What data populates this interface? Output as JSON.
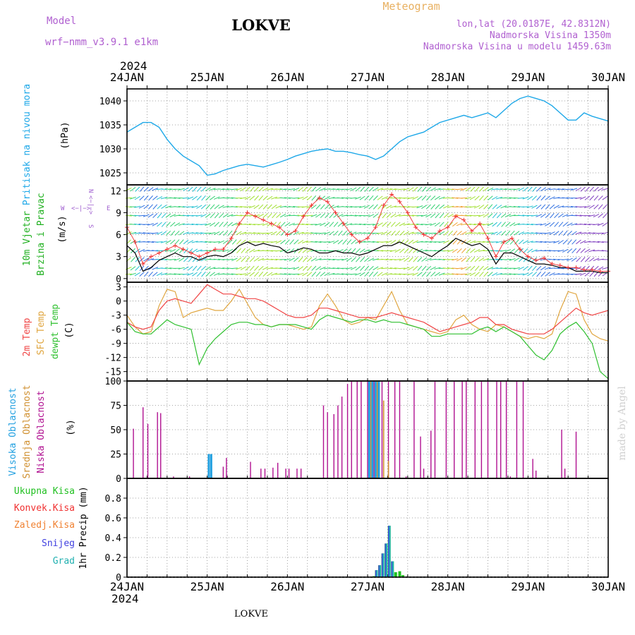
{
  "header": {
    "model_label": "Model",
    "model_name": "wrf−nmm_v3.9.1  e1km",
    "station_title": "LOKVE",
    "product_title": "Meteogram",
    "coords": "lon,lat (20.0187E, 42.8312N)",
    "elevation": "Nadmorska Visina 1350m",
    "model_elevation": "Nadmorska Visina u modelu 1459.63m",
    "footer_station": "LOKVE",
    "watermark": "made by Angel"
  },
  "time_axis": {
    "year_top": "2024",
    "year_bottom": "2024",
    "labels": [
      "24JAN",
      "25JAN",
      "26JAN",
      "27JAN",
      "28JAN",
      "29JAN",
      "30JAN"
    ],
    "start_day": 24,
    "end_day": 30
  },
  "colors": {
    "pressure": "#1ea8e8",
    "pressure_label": "#1ea8e8",
    "temp2m": "#f04545",
    "sfc_temp": "#e0a640",
    "dewpoint": "#30c030",
    "wind_speed": "#000000",
    "gust": "#f03030",
    "wind_label": "#20b020",
    "direction_legend": "#a060d0",
    "cloud_high": "#22a0e0",
    "cloud_mid": "#d09030",
    "cloud_low": "#b01090",
    "precip_total": "#20c020",
    "precip_conv": "#f03030",
    "precip_frozen": "#f08030",
    "precip_snow": "#4040e0",
    "precip_grad": "#20b0b0",
    "header_purple": "#b060d0",
    "header_orange": "#e8b060"
  },
  "chart_data": [
    {
      "type": "line",
      "name": "pressure",
      "label_main": "Pritisak na nivou mora",
      "label_unit": "(hPa)",
      "ylim": [
        1022.5,
        1042.5
      ],
      "yticks": [
        1025,
        1030,
        1035,
        1040
      ],
      "x": [
        24.0,
        24.1,
        24.2,
        24.3,
        24.4,
        24.5,
        24.6,
        24.7,
        24.8,
        24.9,
        25.0,
        25.1,
        25.2,
        25.3,
        25.4,
        25.5,
        25.6,
        25.7,
        25.8,
        25.9,
        26.0,
        26.1,
        26.2,
        26.3,
        26.4,
        26.5,
        26.6,
        26.7,
        26.8,
        26.9,
        27.0,
        27.1,
        27.2,
        27.3,
        27.4,
        27.5,
        27.6,
        27.7,
        27.8,
        27.9,
        28.0,
        28.1,
        28.2,
        28.3,
        28.4,
        28.5,
        28.6,
        28.7,
        28.8,
        28.9,
        29.0,
        29.1,
        29.2,
        29.3,
        29.4,
        29.5,
        29.6,
        29.7,
        29.8,
        29.9,
        30.0
      ],
      "series": [
        {
          "name": "",
          "values": [
            1033.5,
            1034.5,
            1035.5,
            1035.5,
            1034.5,
            1032.0,
            1030.0,
            1028.5,
            1027.5,
            1026.5,
            1024.5,
            1024.8,
            1025.5,
            1026.0,
            1026.5,
            1026.8,
            1026.5,
            1026.2,
            1026.7,
            1027.2,
            1027.8,
            1028.5,
            1029.0,
            1029.5,
            1029.8,
            1030.0,
            1029.5,
            1029.5,
            1029.2,
            1028.8,
            1028.5,
            1027.8,
            1028.5,
            1030.0,
            1031.5,
            1032.5,
            1033.0,
            1033.5,
            1034.5,
            1035.5,
            1036.0,
            1036.5,
            1037.0,
            1036.5,
            1037.0,
            1037.5,
            1036.5,
            1038.0,
            1039.5,
            1040.5,
            1041.0,
            1040.5,
            1040.0,
            1039.0,
            1037.5,
            1036.0,
            1036.0,
            1037.5,
            1036.8,
            1036.3,
            1035.8
          ]
        }
      ]
    },
    {
      "type": "line",
      "name": "wind",
      "label_main": "10m Vjetar",
      "label_sub": "Brzina i Pravac",
      "label_unit": "(m/s)",
      "compass": {
        "n": "N",
        "s": "S",
        "w": "W",
        "e": "E"
      },
      "ylim": [
        -0.5,
        12.8
      ],
      "yticks": [
        0,
        3,
        6,
        9,
        12
      ],
      "x": [
        24.0,
        24.1,
        24.2,
        24.3,
        24.4,
        24.5,
        24.6,
        24.7,
        24.8,
        24.9,
        25.0,
        25.1,
        25.2,
        25.3,
        25.4,
        25.5,
        25.6,
        25.7,
        25.8,
        25.9,
        26.0,
        26.1,
        26.2,
        26.3,
        26.4,
        26.5,
        26.6,
        26.7,
        26.8,
        26.9,
        27.0,
        27.1,
        27.2,
        27.3,
        27.4,
        27.5,
        27.6,
        27.7,
        27.8,
        27.9,
        28.0,
        28.1,
        28.2,
        28.3,
        28.4,
        28.5,
        28.6,
        28.7,
        28.8,
        28.9,
        29.0,
        29.1,
        29.2,
        29.3,
        29.4,
        29.5,
        29.6,
        29.7,
        29.8,
        29.9,
        30.0
      ],
      "series": [
        {
          "name": "",
          "values": [
            4.5,
            3.5,
            1.0,
            1.5,
            2.5,
            3.0,
            3.5,
            3.0,
            3.0,
            2.5,
            3.0,
            3.2,
            3.0,
            3.5,
            4.5,
            5.0,
            4.5,
            4.8,
            4.5,
            4.3,
            3.5,
            3.8,
            4.2,
            4.0,
            3.5,
            3.5,
            3.8,
            3.5,
            3.5,
            3.2,
            3.5,
            4.0,
            4.5,
            4.5,
            5.0,
            4.5,
            4.0,
            3.5,
            3.0,
            3.8,
            4.5,
            5.5,
            5.0,
            4.5,
            4.8,
            4.0,
            2.0,
            3.5,
            3.5,
            3.0,
            2.5,
            2.0,
            2.0,
            1.8,
            1.5,
            1.5,
            1.0,
            1.0,
            1.0,
            0.8,
            0.8
          ]
        },
        {
          "name": "",
          "values": [
            7.0,
            5.0,
            2.0,
            3.0,
            3.5,
            4.0,
            4.5,
            4.0,
            3.5,
            3.0,
            3.5,
            4.0,
            4.0,
            5.5,
            7.5,
            9.0,
            8.5,
            8.0,
            7.5,
            7.0,
            6.0,
            6.5,
            8.5,
            10.0,
            11.0,
            10.5,
            9.0,
            7.5,
            6.0,
            5.0,
            5.5,
            7.0,
            10.0,
            11.5,
            10.5,
            9.0,
            7.0,
            6.0,
            5.5,
            6.5,
            7.0,
            8.5,
            8.0,
            6.5,
            7.5,
            5.5,
            3.0,
            5.0,
            5.5,
            4.0,
            3.0,
            2.5,
            2.8,
            2.0,
            1.8,
            1.5,
            1.5,
            1.2,
            1.2,
            1.0,
            1.0
          ]
        }
      ]
    },
    {
      "type": "line",
      "name": "temperature",
      "label_main": "2m Temp",
      "label_sub": "SFC Temp",
      "label_sub2": "dewpt Temp",
      "label_unit": "(C)",
      "ylim": [
        -17,
        4
      ],
      "yticks": [
        3,
        0,
        -3,
        -6,
        -9,
        -12,
        -15
      ],
      "x": [
        24.0,
        24.1,
        24.2,
        24.3,
        24.4,
        24.5,
        24.6,
        24.7,
        24.8,
        24.9,
        25.0,
        25.1,
        25.2,
        25.3,
        25.4,
        25.5,
        25.6,
        25.7,
        25.8,
        25.9,
        26.0,
        26.1,
        26.2,
        26.3,
        26.4,
        26.5,
        26.6,
        26.7,
        26.8,
        26.9,
        27.0,
        27.1,
        27.2,
        27.3,
        27.4,
        27.5,
        27.6,
        27.7,
        27.8,
        27.9,
        28.0,
        28.1,
        28.2,
        28.3,
        28.4,
        28.5,
        28.6,
        28.7,
        28.8,
        28.9,
        29.0,
        29.1,
        29.2,
        29.3,
        29.4,
        29.5,
        29.6,
        29.7,
        29.8,
        29.9,
        30.0
      ],
      "series": [
        {
          "name": "",
          "values": [
            -4.5,
            -5.5,
            -6.0,
            -5.5,
            -2.0,
            0.0,
            0.5,
            0.0,
            -0.5,
            1.5,
            3.5,
            2.5,
            1.5,
            1.5,
            1.0,
            0.5,
            0.5,
            0.0,
            -1.0,
            -2.0,
            -3.0,
            -3.5,
            -3.5,
            -3.0,
            -1.5,
            -1.5,
            -2.0,
            -2.5,
            -3.0,
            -3.5,
            -3.5,
            -3.5,
            -3.0,
            -2.5,
            -3.0,
            -3.5,
            -4.0,
            -4.5,
            -5.5,
            -6.5,
            -6.0,
            -5.5,
            -5.0,
            -4.5,
            -3.5,
            -3.5,
            -5.0,
            -5.0,
            -6.0,
            -6.5,
            -7.0,
            -7.0,
            -7.0,
            -6.0,
            -4.5,
            -3.0,
            -1.5,
            -2.5,
            -3.0,
            -2.5,
            -2.0
          ]
        },
        {
          "name": "",
          "values": [
            -3.0,
            -5.5,
            -7.0,
            -6.5,
            -1.0,
            2.5,
            2.0,
            -3.5,
            -2.5,
            -2.0,
            -1.5,
            -2.0,
            -2.0,
            0.0,
            2.5,
            -0.5,
            -3.5,
            -5.0,
            -5.5,
            -5.0,
            -5.0,
            -5.5,
            -6.0,
            -5.5,
            -1.0,
            1.5,
            -1.0,
            -4.0,
            -5.0,
            -4.5,
            -3.5,
            -4.0,
            -1.0,
            2.0,
            -2.0,
            -5.0,
            -5.5,
            -6.0,
            -6.5,
            -7.0,
            -6.5,
            -4.0,
            -3.0,
            -5.0,
            -6.0,
            -6.5,
            -5.0,
            -5.5,
            -6.5,
            -7.5,
            -8.0,
            -7.5,
            -8.0,
            -7.0,
            -2.0,
            2.0,
            1.5,
            -4.0,
            -7.0,
            -8.0,
            -8.5
          ]
        },
        {
          "name": "",
          "values": [
            -4.5,
            -6.5,
            -7.0,
            -7.0,
            -5.5,
            -4.0,
            -5.0,
            -5.5,
            -6.0,
            -13.5,
            -10.0,
            -8.0,
            -6.5,
            -5.0,
            -4.5,
            -4.5,
            -5.0,
            -5.0,
            -5.5,
            -5.0,
            -5.0,
            -5.0,
            -5.5,
            -6.0,
            -4.0,
            -3.0,
            -3.5,
            -4.0,
            -4.5,
            -4.0,
            -4.0,
            -4.5,
            -4.0,
            -4.5,
            -4.5,
            -5.0,
            -5.5,
            -6.0,
            -7.5,
            -7.5,
            -7.0,
            -7.0,
            -7.0,
            -7.0,
            -6.0,
            -5.5,
            -6.5,
            -5.5,
            -6.5,
            -7.5,
            -9.5,
            -11.5,
            -12.5,
            -10.5,
            -7.0,
            -5.5,
            -4.5,
            -6.5,
            -9.0,
            -15.0,
            -16.5
          ]
        }
      ]
    },
    {
      "type": "bar",
      "name": "cloud",
      "label_high": "Visoka Oblacnost",
      "label_mid": "Srednja Oblacnost",
      "label_low": "Niska Oblacnost",
      "label_unit": "(%)",
      "ylim": [
        0,
        100
      ],
      "yticks": [
        0,
        25,
        50,
        75,
        100
      ],
      "series": [
        {
          "name": "",
          "x": [
            25.02,
            25.05,
            27.02,
            27.06,
            27.1,
            27.14
          ],
          "values": [
            25,
            25,
            100,
            100,
            100,
            100
          ]
        },
        {
          "name": "",
          "x": [
            27.04,
            27.12,
            27.2,
            27.26
          ],
          "values": [
            100,
            100,
            80,
            18
          ]
        },
        {
          "name": "",
          "x": [
            24.08,
            24.2,
            24.26,
            24.38,
            24.42,
            24.58,
            24.78,
            25.2,
            25.24,
            25.54,
            25.67,
            25.72,
            25.82,
            25.88,
            25.98,
            26.02,
            26.12,
            26.17,
            26.45,
            26.5,
            26.58,
            26.63,
            26.68,
            26.75,
            26.8,
            26.87,
            26.92,
            27.0,
            27.08,
            27.18,
            27.26,
            27.34,
            27.4,
            27.48,
            27.58,
            27.66,
            27.7,
            27.79,
            27.84,
            27.98,
            28.08,
            28.18,
            28.23,
            28.34,
            28.42,
            28.5,
            28.61,
            28.66,
            28.73,
            28.78,
            28.86,
            28.94,
            29.06,
            29.1,
            29.42,
            29.46,
            29.6
          ],
          "values": [
            51,
            73,
            56,
            68,
            67,
            2,
            2,
            12,
            21,
            17,
            10,
            10,
            11,
            16,
            10,
            10,
            10,
            10,
            75,
            68,
            66,
            75,
            84,
            97,
            100,
            100,
            100,
            100,
            100,
            100,
            100,
            100,
            100,
            2,
            100,
            43,
            10,
            49,
            100,
            100,
            100,
            100,
            100,
            100,
            100,
            100,
            100,
            100,
            100,
            2,
            100,
            100,
            20,
            8,
            50,
            10,
            48
          ]
        }
      ]
    },
    {
      "type": "bar",
      "name": "precip",
      "label_total": "Ukupna Kisa",
      "label_conv": "Konvek.Kisa",
      "label_frozen": "Zaledj.Kisa",
      "label_snow": "Snijeg",
      "label_grad": "Grad",
      "label_unit": "1hr Precip (mm)",
      "ylim": [
        0,
        1.0
      ],
      "yticks": [
        0,
        0.2,
        0.4,
        0.6,
        0.8
      ],
      "series": [
        {
          "name": "",
          "x": [
            27.08,
            27.11,
            27.15,
            27.19,
            27.23,
            27.27,
            27.31,
            27.35,
            27.4,
            27.44
          ],
          "values": [
            0.01,
            0.07,
            0.12,
            0.24,
            0.34,
            0.52,
            0.16,
            0.05,
            0.06,
            0.02
          ]
        },
        {
          "name": "",
          "x": [
            27.11,
            27.15,
            27.19,
            27.23,
            27.27,
            27.31
          ],
          "values": [
            0.07,
            0.12,
            0.24,
            0.34,
            0.52,
            0.16
          ]
        },
        {
          "name": "",
          "x": [
            27.11,
            27.15,
            27.19,
            27.23,
            27.27,
            27.31
          ],
          "values": [
            0.07,
            0.12,
            0.24,
            0.34,
            0.52,
            0.16
          ]
        }
      ]
    }
  ]
}
